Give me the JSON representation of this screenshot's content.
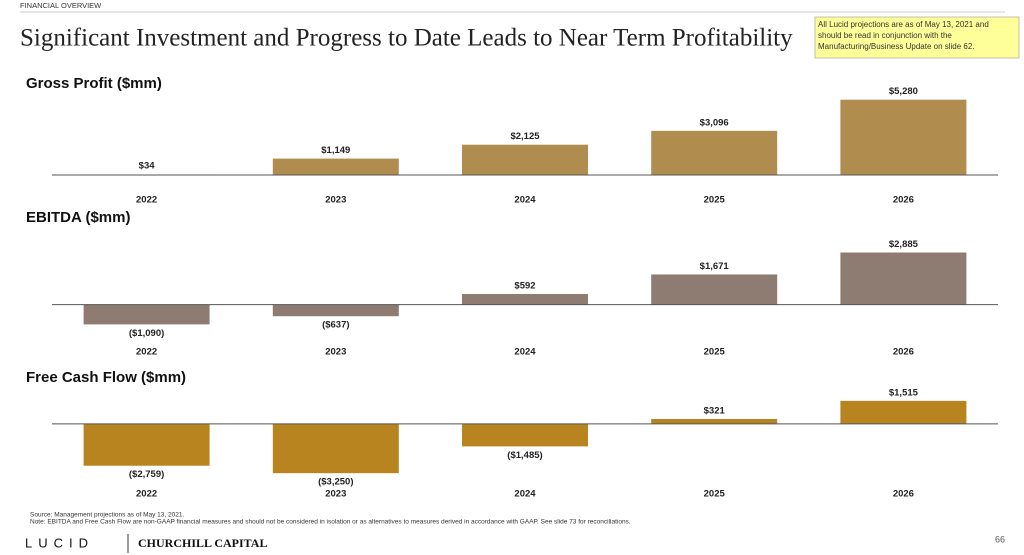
{
  "header": "FINANCIAL OVERVIEW",
  "title": "Significant Investment and Progress to Date Leads to Near Term Profitability",
  "note": [
    "All Lucid projections are as of May 13, 2021 and",
    "should be read in conjunction with the",
    "Manufacturing/Business Update on slide 62."
  ],
  "source": "Source: Management projections as of May 13, 2021.",
  "footnote": "Note: EBITDA and Free Cash Flow are non-GAAP financial measures and should not be considered in isolation or as alternatives to measures derived in accordance with GAAP. See slide 73 for reconciliations.",
  "footer": {
    "brand": "LUCID",
    "partner": "CHURCHILL CAPITAL",
    "page": "66"
  },
  "chart_data": [
    {
      "type": "bar",
      "title": "Gross Profit ($mm)",
      "categories": [
        "2022",
        "2023",
        "2024",
        "2025",
        "2026"
      ],
      "values": [
        34,
        1149,
        2125,
        3096,
        5280
      ],
      "value_labels": [
        "$34",
        "$1,149",
        "$2,125",
        "$3,096",
        "$5,280"
      ],
      "color": "#b08d4e",
      "ylim": [
        0,
        6100
      ]
    },
    {
      "type": "bar",
      "title": "EBITDA ($mm)",
      "categories": [
        "2022",
        "2023",
        "2024",
        "2025",
        "2026"
      ],
      "values": [
        -1090,
        -637,
        592,
        1671,
        2885
      ],
      "value_labels": [
        "($1,090)",
        "($637)",
        "$592",
        "$1,671",
        "$2,885"
      ],
      "color": "#8e7c73",
      "ylim": [
        -1400,
        3300
      ]
    },
    {
      "type": "bar",
      "title": "Free Cash Flow ($mm)",
      "categories": [
        "2022",
        "2023",
        "2024",
        "2025",
        "2026"
      ],
      "values": [
        -2759,
        -3250,
        -1485,
        321,
        1515
      ],
      "value_labels": [
        "($2,759)",
        "($3,250)",
        "($1,485)",
        "$321",
        "$1,515"
      ],
      "color": "#b8841f",
      "ylim": [
        -3700,
        2100
      ]
    }
  ]
}
